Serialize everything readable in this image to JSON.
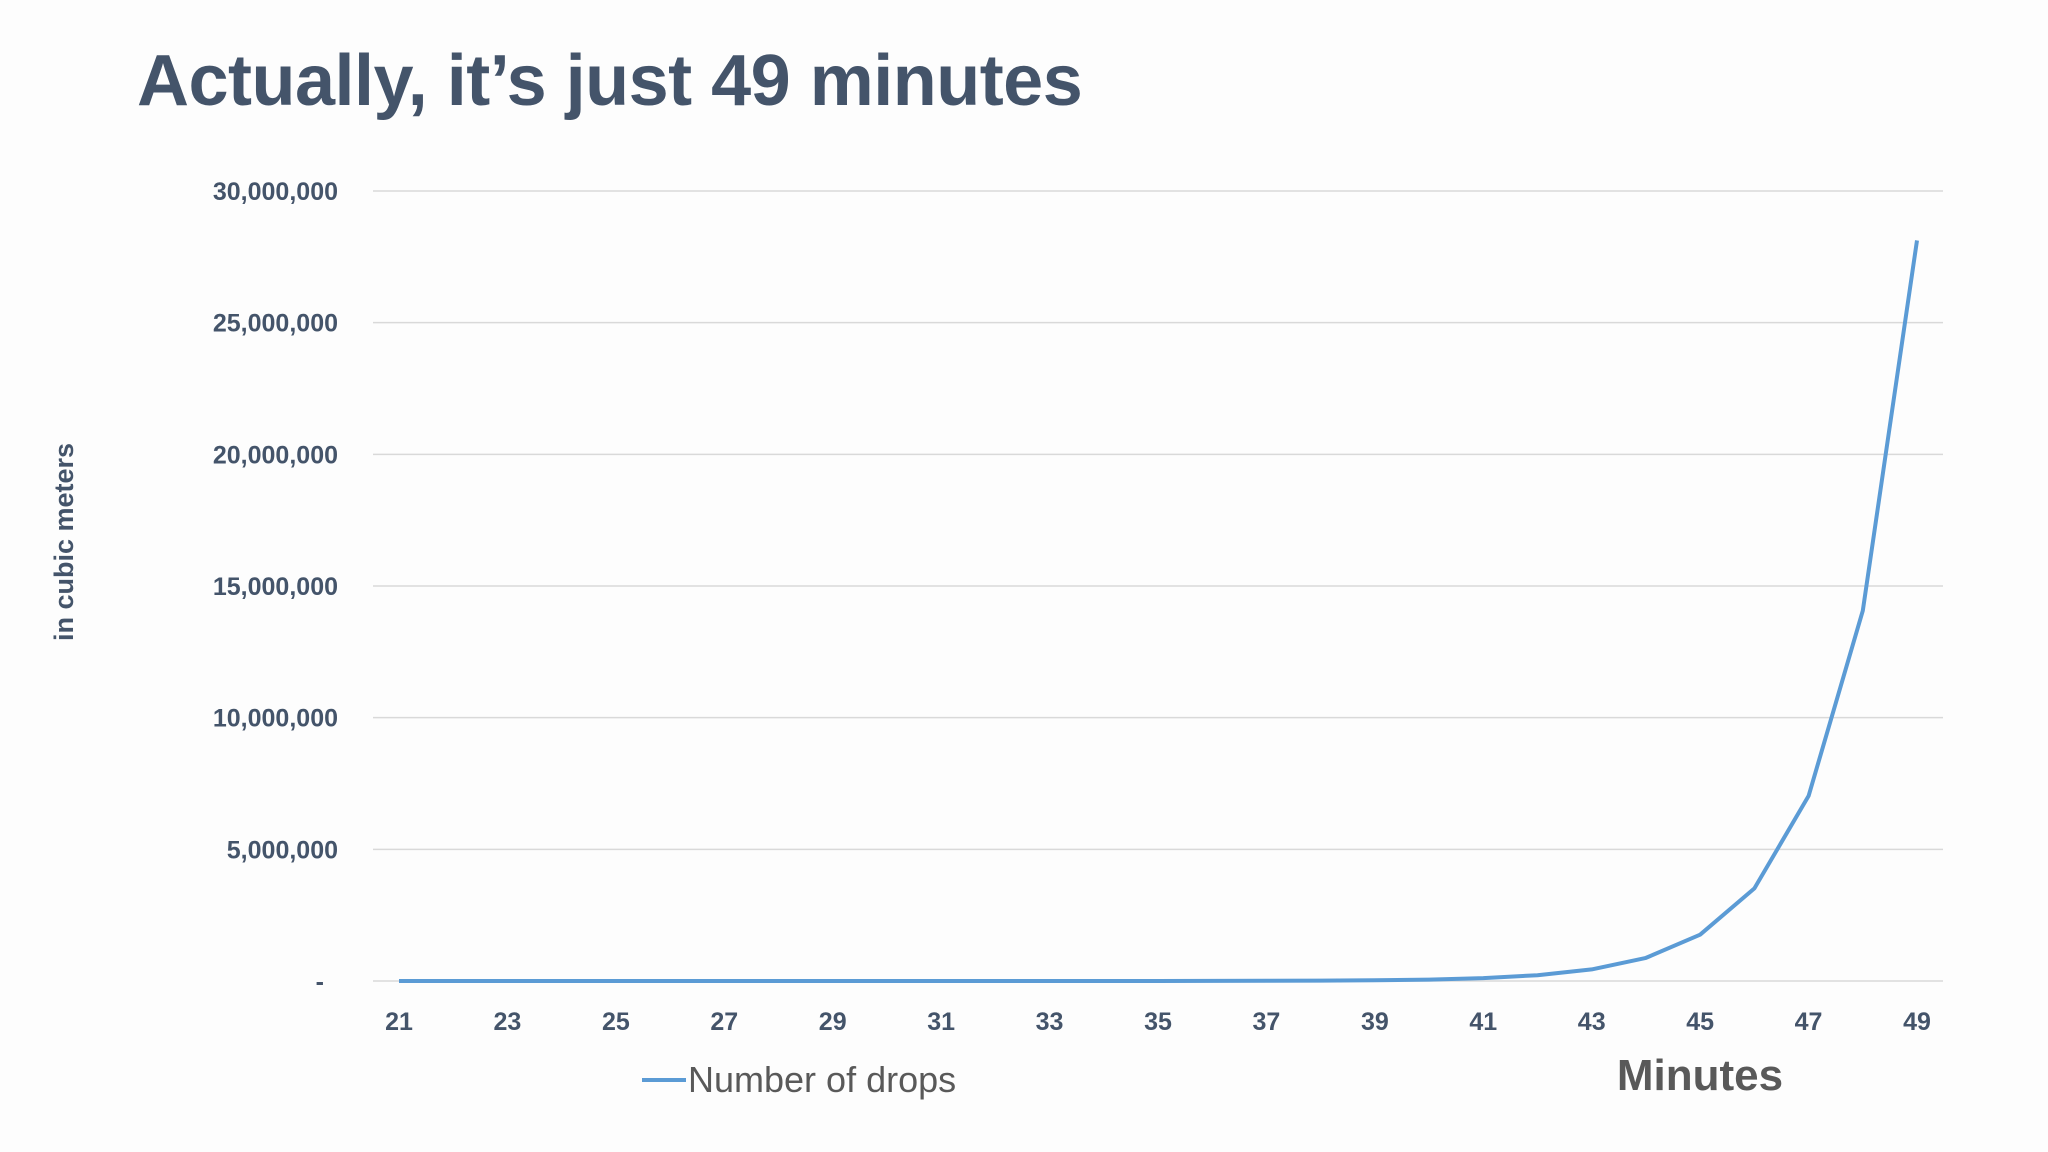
{
  "slide": {
    "title": "Actually, it’s just 49 minutes"
  },
  "chart_data": {
    "type": "line",
    "xlabel": "Minutes",
    "ylabel": "in cubic meters",
    "x": [
      21,
      22,
      23,
      24,
      25,
      26,
      27,
      28,
      29,
      30,
      31,
      32,
      33,
      34,
      35,
      36,
      37,
      38,
      39,
      40,
      41,
      42,
      43,
      44,
      45,
      46,
      47,
      48,
      49
    ],
    "x_tick_labels": [
      "21",
      "23",
      "25",
      "27",
      "29",
      "31",
      "33",
      "35",
      "37",
      "39",
      "41",
      "43",
      "45",
      "47",
      "49"
    ],
    "series": [
      {
        "name": "Number of drops",
        "color": "#5b9bd5",
        "values": [
          0.1,
          0.2,
          0.4,
          0.8,
          1.7,
          3.4,
          6.7,
          13,
          27,
          54,
          107,
          215,
          429,
          858,
          1716,
          3433,
          6866,
          13732,
          27464,
          54928,
          109856,
          219712,
          439423,
          878847,
          1757694,
          3515388,
          7030776,
          14061553,
          28123106
        ]
      }
    ],
    "ylim": [
      0,
      30000000
    ],
    "y_ticks": [
      0,
      5000000,
      10000000,
      15000000,
      20000000,
      25000000,
      30000000
    ],
    "y_tick_labels": [
      "-",
      "5,000,000",
      "10,000,000",
      "15,000,000",
      "20,000,000",
      "25,000,000",
      "30,000,000"
    ],
    "grid": "horizontal",
    "legend_position": "bottom-left",
    "gridline_color": "#d9d9d9",
    "text_color": "#44546a"
  }
}
